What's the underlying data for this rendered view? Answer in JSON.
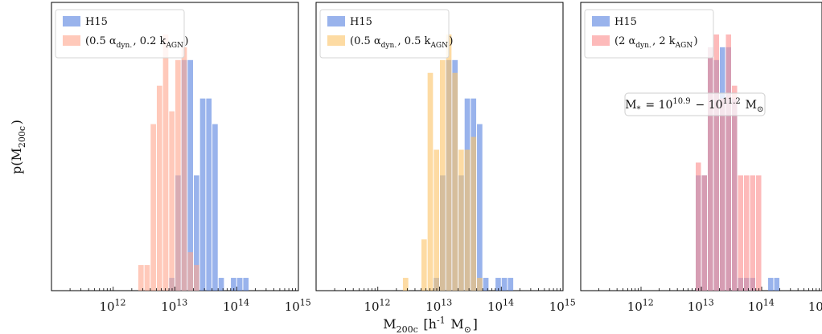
{
  "figure": {
    "xlabel": "M_200c [h^-1 M_⊙]",
    "ylabel": "p(M_200c)"
  },
  "chart_data": [
    {
      "type": "bar",
      "xscale": "log",
      "xlim": [
        100000000000.0,
        1000000000000000.0
      ],
      "ylim": [
        0,
        22.5
      ],
      "bin_width_dex": 0.1,
      "xticks": [
        "10^12",
        "10^13",
        "10^14",
        "10^15"
      ],
      "legend_position": "top-left",
      "series": [
        {
          "name": "H15",
          "color": "#5b84e0",
          "bins": [
            {
              "x": 12.9,
              "v": 1
            },
            {
              "x": 13.0,
              "v": 9
            },
            {
              "x": 13.1,
              "v": 18
            },
            {
              "x": 13.2,
              "v": 18
            },
            {
              "x": 13.3,
              "v": 9
            },
            {
              "x": 13.4,
              "v": 15
            },
            {
              "x": 13.5,
              "v": 15
            },
            {
              "x": 13.6,
              "v": 13
            },
            {
              "x": 13.7,
              "v": 1
            },
            {
              "x": 13.9,
              "v": 1
            },
            {
              "x": 14.0,
              "v": 1
            },
            {
              "x": 14.1,
              "v": 1
            }
          ]
        },
        {
          "name": "(0.5 α_dyn., 0.2 k_AGN)",
          "color": "#ffa890",
          "bins": [
            {
              "x": 12.4,
              "v": 2
            },
            {
              "x": 12.5,
              "v": 2
            },
            {
              "x": 12.6,
              "v": 13
            },
            {
              "x": 12.7,
              "v": 16
            },
            {
              "x": 12.8,
              "v": 20
            },
            {
              "x": 12.9,
              "v": 14
            },
            {
              "x": 13.0,
              "v": 18
            },
            {
              "x": 13.1,
              "v": 19
            },
            {
              "x": 13.2,
              "v": 3
            },
            {
              "x": 13.3,
              "v": 2
            }
          ]
        }
      ],
      "annotation": ""
    },
    {
      "type": "bar",
      "xscale": "log",
      "xlim": [
        100000000000.0,
        1000000000000000.0
      ],
      "ylim": [
        0,
        22.5
      ],
      "bin_width_dex": 0.1,
      "xticks": [
        "10^12",
        "10^13",
        "10^14",
        "10^15"
      ],
      "legend_position": "top-left",
      "series": [
        {
          "name": "H15",
          "color": "#5b84e0",
          "bins": [
            {
              "x": 12.9,
              "v": 1
            },
            {
              "x": 13.0,
              "v": 9
            },
            {
              "x": 13.1,
              "v": 18
            },
            {
              "x": 13.2,
              "v": 18
            },
            {
              "x": 13.3,
              "v": 9
            },
            {
              "x": 13.4,
              "v": 15
            },
            {
              "x": 13.5,
              "v": 15
            },
            {
              "x": 13.6,
              "v": 13
            },
            {
              "x": 13.7,
              "v": 1
            },
            {
              "x": 13.9,
              "v": 1
            },
            {
              "x": 14.0,
              "v": 1
            },
            {
              "x": 14.1,
              "v": 1
            }
          ]
        },
        {
          "name": "(0.5 α_dyn., 0.5 k_AGN)",
          "color": "#fcc56a",
          "bins": [
            {
              "x": 12.4,
              "v": 1
            },
            {
              "x": 12.7,
              "v": 4
            },
            {
              "x": 12.8,
              "v": 17
            },
            {
              "x": 12.9,
              "v": 11
            },
            {
              "x": 13.0,
              "v": 18
            },
            {
              "x": 13.1,
              "v": 20
            },
            {
              "x": 13.2,
              "v": 17
            },
            {
              "x": 13.3,
              "v": 11
            },
            {
              "x": 13.4,
              "v": 11
            },
            {
              "x": 13.5,
              "v": 12
            },
            {
              "x": 13.6,
              "v": 1
            }
          ]
        }
      ],
      "annotation": ""
    },
    {
      "type": "bar",
      "xscale": "log",
      "xlim": [
        100000000000.0,
        1000000000000000.0
      ],
      "ylim": [
        0,
        22.5
      ],
      "bin_width_dex": 0.1,
      "xticks": [
        "10^12",
        "10^13",
        "10^14",
        "10^15"
      ],
      "legend_position": "top-left",
      "series": [
        {
          "name": "H15",
          "color": "#5b84e0",
          "bins": [
            {
              "x": 12.9,
              "v": 9
            },
            {
              "x": 13.0,
              "v": 9
            },
            {
              "x": 13.1,
              "v": 19
            },
            {
              "x": 13.2,
              "v": 18
            },
            {
              "x": 13.3,
              "v": 19
            },
            {
              "x": 13.4,
              "v": 19
            },
            {
              "x": 13.5,
              "v": 15
            },
            {
              "x": 13.6,
              "v": 1
            },
            {
              "x": 13.7,
              "v": 1
            },
            {
              "x": 13.8,
              "v": 1
            },
            {
              "x": 14.1,
              "v": 1
            },
            {
              "x": 14.2,
              "v": 1
            }
          ]
        },
        {
          "name": "(2 α_dyn., 2 k_AGN)",
          "color": "#fb8f8f",
          "bins": [
            {
              "x": 12.9,
              "v": 10
            },
            {
              "x": 13.0,
              "v": 9
            },
            {
              "x": 13.1,
              "v": 19
            },
            {
              "x": 13.2,
              "v": 20
            },
            {
              "x": 13.3,
              "v": 15
            },
            {
              "x": 13.4,
              "v": 20
            },
            {
              "x": 13.5,
              "v": 16
            },
            {
              "x": 13.6,
              "v": 9
            },
            {
              "x": 13.7,
              "v": 9
            },
            {
              "x": 13.8,
              "v": 9
            },
            {
              "x": 13.9,
              "v": 9
            }
          ]
        }
      ],
      "annotation": "M_* = 10^10.9 − 10^11.2 M_⊙"
    }
  ]
}
